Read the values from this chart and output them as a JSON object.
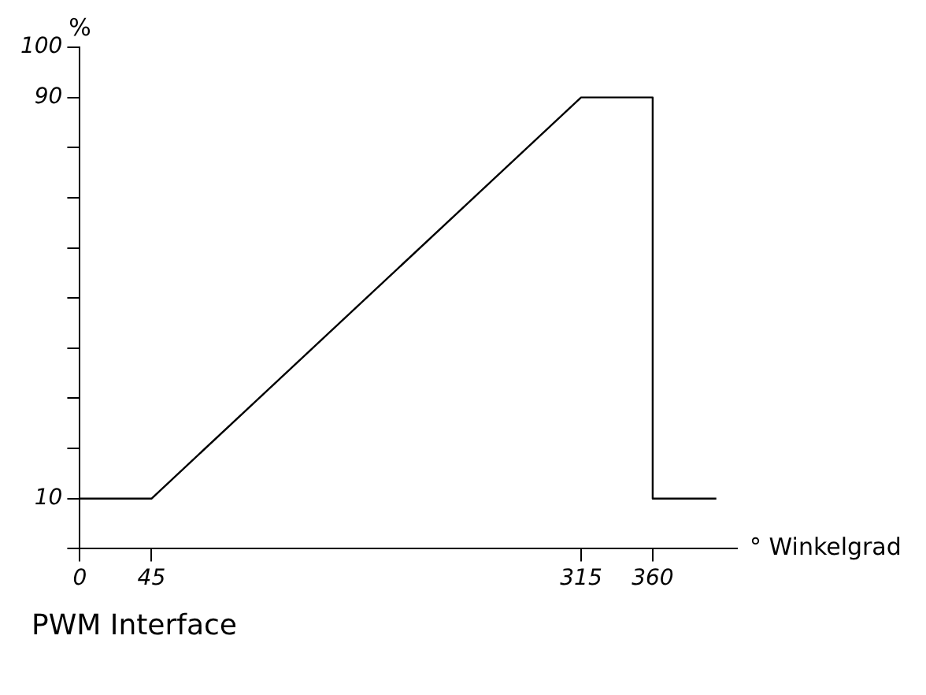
{
  "chart_data": {
    "type": "line",
    "title": "PWM Interface",
    "xlabel": "° Winkelgrad",
    "ylabel": "%",
    "series": [
      {
        "color": "#000000",
        "x": [
          0,
          45,
          315,
          360,
          360,
          400
        ],
        "values": [
          10,
          10,
          90,
          90,
          10,
          10
        ]
      }
    ],
    "xlim": [
      0,
      413
    ],
    "xticks": [
      0,
      45,
      315,
      360
    ],
    "ylim": [
      0,
      100
    ],
    "yticks": [
      {
        "value": 0,
        "label": null
      },
      10,
      {
        "value": 20,
        "label": null
      },
      {
        "value": 30,
        "label": null
      },
      {
        "value": 40,
        "label": null
      },
      {
        "value": 50,
        "label": null
      },
      {
        "value": 60,
        "label": null
      },
      {
        "value": 70,
        "label": null
      },
      {
        "value": 80,
        "label": null
      },
      90,
      100
    ],
    "grid": false,
    "legend": false,
    "marker": "none",
    "line_style": "solid"
  }
}
